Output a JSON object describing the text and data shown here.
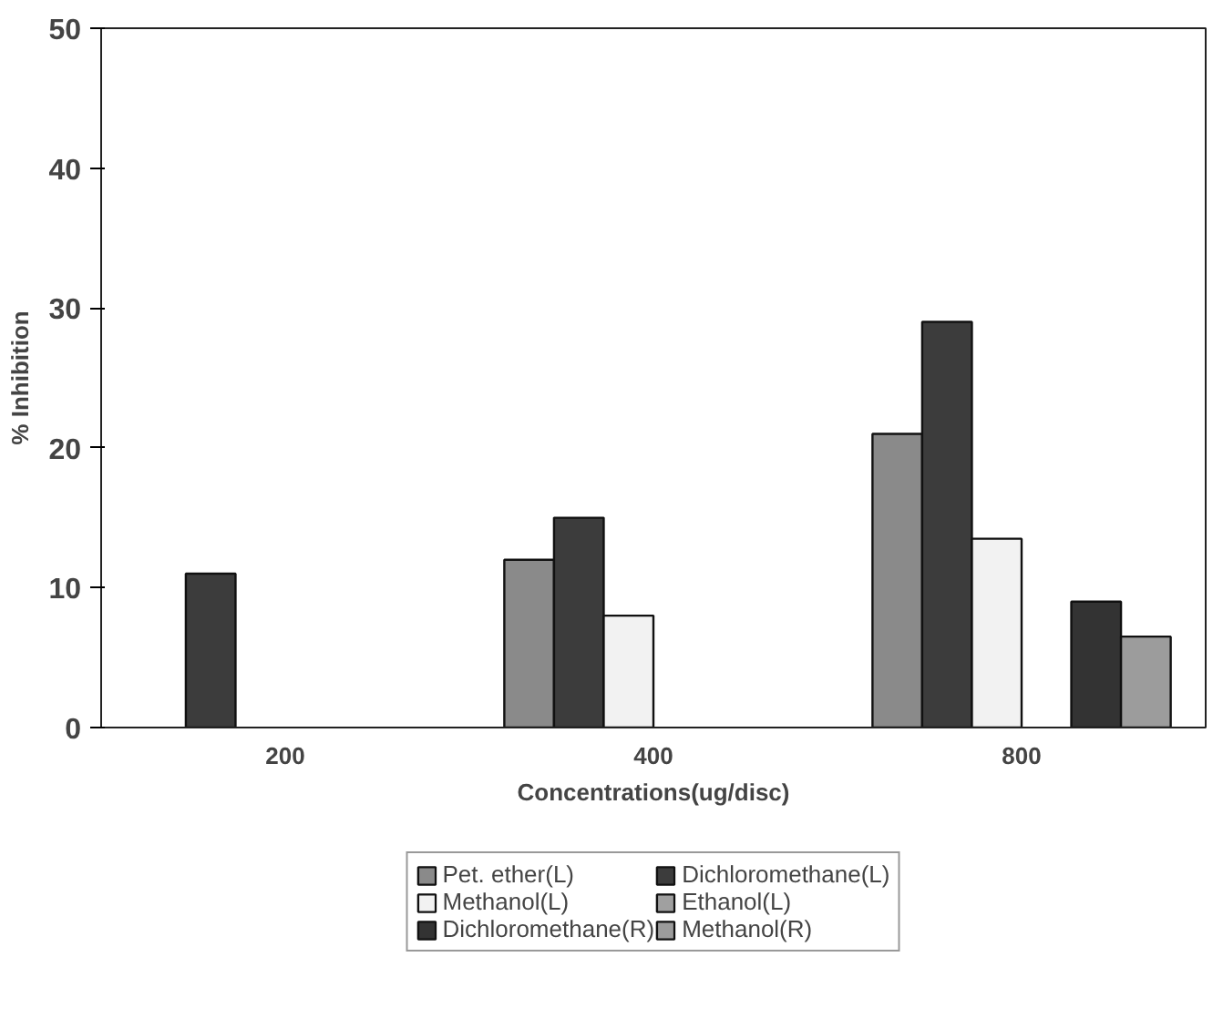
{
  "chart_data": {
    "type": "bar",
    "xlabel": "Concentrations(ug/disc)",
    "ylabel": "% Inhibition",
    "categories": [
      "200",
      "400",
      "800"
    ],
    "series": [
      {
        "name": "Pet. ether(L)",
        "color": "#8a8a8a",
        "values": [
          null,
          12,
          21
        ]
      },
      {
        "name": "Dichloromethane(L)",
        "color": "#3c3c3c",
        "values": [
          11,
          15,
          29
        ]
      },
      {
        "name": "Methanol(L)",
        "color": "#f2f2f2",
        "values": [
          null,
          8,
          13.5
        ]
      },
      {
        "name": "Ethanol(L)",
        "color": "#a0a0a0",
        "values": [
          null,
          null,
          null
        ]
      },
      {
        "name": "Dichloromethane(R)",
        "color": "#333333",
        "values": [
          null,
          null,
          9
        ]
      },
      {
        "name": "Methanol(R)",
        "color": "#9c9c9c",
        "values": [
          null,
          null,
          6.5
        ]
      }
    ],
    "ylim": [
      0,
      50
    ],
    "yticks": [
      0,
      10,
      20,
      30,
      40,
      50
    ],
    "grid": false,
    "legend": "bottom"
  }
}
